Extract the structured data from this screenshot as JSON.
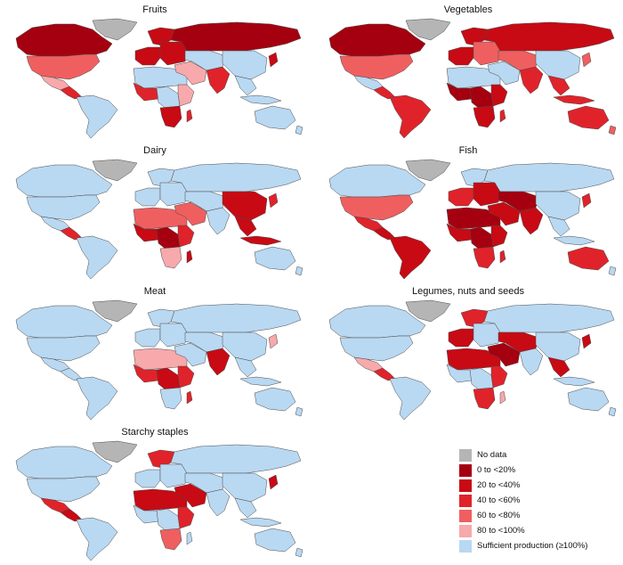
{
  "colors": {
    "no_data": "#b5b5b5",
    "c0": "#a50010",
    "c20": "#c80a14",
    "c40": "#e0232a",
    "c60": "#ef5f60",
    "c80": "#f7a9ab",
    "sufficient": "#b9d8f2",
    "border": "#4a4a4a"
  },
  "panels": [
    {
      "title": "Fruits",
      "regions": {
        "canada": "c0",
        "usa": "c60",
        "mexico": "c80",
        "centralam": "c40",
        "southam": "sufficient",
        "greenland": "no_data",
        "westeu": "c20",
        "scandinavia": "c20",
        "easteu": "c20",
        "russia": "c0",
        "northafrica": "sufficient",
        "westafrica": "c40",
        "centralafrica": "sufficient",
        "eastafrica": "c80",
        "southafrica": "c20",
        "madagascar": "c40",
        "middleeast": "c80",
        "centralasia": "sufficient",
        "southasia": "c40",
        "china": "sufficient",
        "seasia": "sufficient",
        "japan": "c20",
        "indonesia": "sufficient",
        "australia": "sufficient",
        "nz": "sufficient"
      }
    },
    {
      "title": "Vegetables",
      "regions": {
        "canada": "c0",
        "usa": "c60",
        "mexico": "sufficient",
        "centralam": "c40",
        "southam": "c40",
        "greenland": "no_data",
        "westeu": "c20",
        "scandinavia": "c20",
        "easteu": "c60",
        "russia": "c20",
        "northafrica": "sufficient",
        "westafrica": "c0",
        "centralafrica": "c0",
        "eastafrica": "c20",
        "southafrica": "c20",
        "madagascar": "c40",
        "middleeast": "sufficient",
        "centralasia": "c60",
        "southasia": "c40",
        "china": "sufficient",
        "seasia": "c40",
        "japan": "c60",
        "indonesia": "c40",
        "australia": "c40",
        "nz": "c60"
      }
    },
    {
      "title": "Dairy",
      "regions": {
        "canada": "sufficient",
        "usa": "sufficient",
        "mexico": "sufficient",
        "centralam": "c40",
        "southam": "sufficient",
        "greenland": "no_data",
        "westeu": "sufficient",
        "scandinavia": "sufficient",
        "easteu": "sufficient",
        "russia": "sufficient",
        "northafrica": "c60",
        "westafrica": "c20",
        "centralafrica": "c0",
        "eastafrica": "c40",
        "southafrica": "c80",
        "madagascar": "c20",
        "middleeast": "c60",
        "centralasia": "sufficient",
        "southasia": "sufficient",
        "china": "c20",
        "seasia": "c20",
        "japan": "c40",
        "indonesia": "c20",
        "australia": "sufficient",
        "nz": "sufficient"
      }
    },
    {
      "title": "Fish",
      "regions": {
        "canada": "sufficient",
        "usa": "c60",
        "mexico": "c40",
        "centralam": "c20",
        "southam": "c20",
        "greenland": "no_data",
        "westeu": "c40",
        "scandinavia": "sufficient",
        "easteu": "c20",
        "russia": "sufficient",
        "northafrica": "c0",
        "westafrica": "c20",
        "centralafrica": "c0",
        "eastafrica": "c20",
        "southafrica": "c40",
        "madagascar": "c40",
        "middleeast": "c20",
        "centralasia": "c0",
        "southasia": "c20",
        "china": "sufficient",
        "seasia": "sufficient",
        "japan": "c40",
        "indonesia": "sufficient",
        "australia": "c40",
        "nz": "sufficient"
      }
    },
    {
      "title": "Meat",
      "regions": {
        "canada": "sufficient",
        "usa": "sufficient",
        "mexico": "sufficient",
        "centralam": "sufficient",
        "southam": "sufficient",
        "greenland": "no_data",
        "westeu": "sufficient",
        "scandinavia": "sufficient",
        "easteu": "sufficient",
        "russia": "sufficient",
        "northafrica": "c80",
        "westafrica": "c40",
        "centralafrica": "c20",
        "eastafrica": "c40",
        "southafrica": "sufficient",
        "madagascar": "c40",
        "middleeast": "sufficient",
        "centralasia": "sufficient",
        "southasia": "c20",
        "china": "sufficient",
        "seasia": "sufficient",
        "japan": "c80",
        "indonesia": "sufficient",
        "australia": "sufficient",
        "nz": "sufficient"
      }
    },
    {
      "title": "Legumes, nuts and seeds",
      "regions": {
        "canada": "sufficient",
        "usa": "sufficient",
        "mexico": "c80",
        "centralam": "c40",
        "southam": "sufficient",
        "greenland": "no_data",
        "westeu": "c20",
        "scandinavia": "c40",
        "easteu": "sufficient",
        "russia": "sufficient",
        "northafrica": "c20",
        "westafrica": "sufficient",
        "centralafrica": "sufficient",
        "eastafrica": "c40",
        "southafrica": "c40",
        "madagascar": "c80",
        "middleeast": "c0",
        "centralasia": "c20",
        "southasia": "sufficient",
        "china": "sufficient",
        "seasia": "c20",
        "japan": "c20",
        "indonesia": "sufficient",
        "australia": "sufficient",
        "nz": "sufficient"
      }
    },
    {
      "title": "Starchy staples",
      "regions": {
        "canada": "sufficient",
        "usa": "sufficient",
        "mexico": "c40",
        "centralam": "c20",
        "southam": "sufficient",
        "greenland": "no_data",
        "westeu": "sufficient",
        "scandinavia": "c40",
        "easteu": "sufficient",
        "russia": "sufficient",
        "northafrica": "c20",
        "westafrica": "sufficient",
        "centralafrica": "sufficient",
        "eastafrica": "c40",
        "southafrica": "c60",
        "madagascar": "sufficient",
        "middleeast": "c20",
        "centralasia": "sufficient",
        "southasia": "sufficient",
        "china": "sufficient",
        "seasia": "sufficient",
        "japan": "c20",
        "indonesia": "sufficient",
        "australia": "sufficient",
        "nz": "sufficient"
      }
    }
  ],
  "legend": [
    {
      "label": "No data",
      "color_key": "no_data"
    },
    {
      "label": "0 to <20%",
      "color_key": "c0"
    },
    {
      "label": "20 to <40%",
      "color_key": "c20"
    },
    {
      "label": "40 to <60%",
      "color_key": "c40"
    },
    {
      "label": "60 to <80%",
      "color_key": "c60"
    },
    {
      "label": "80 to <100%",
      "color_key": "c80"
    },
    {
      "label": "Sufficient production (≥100%)",
      "color_key": "sufficient"
    }
  ]
}
